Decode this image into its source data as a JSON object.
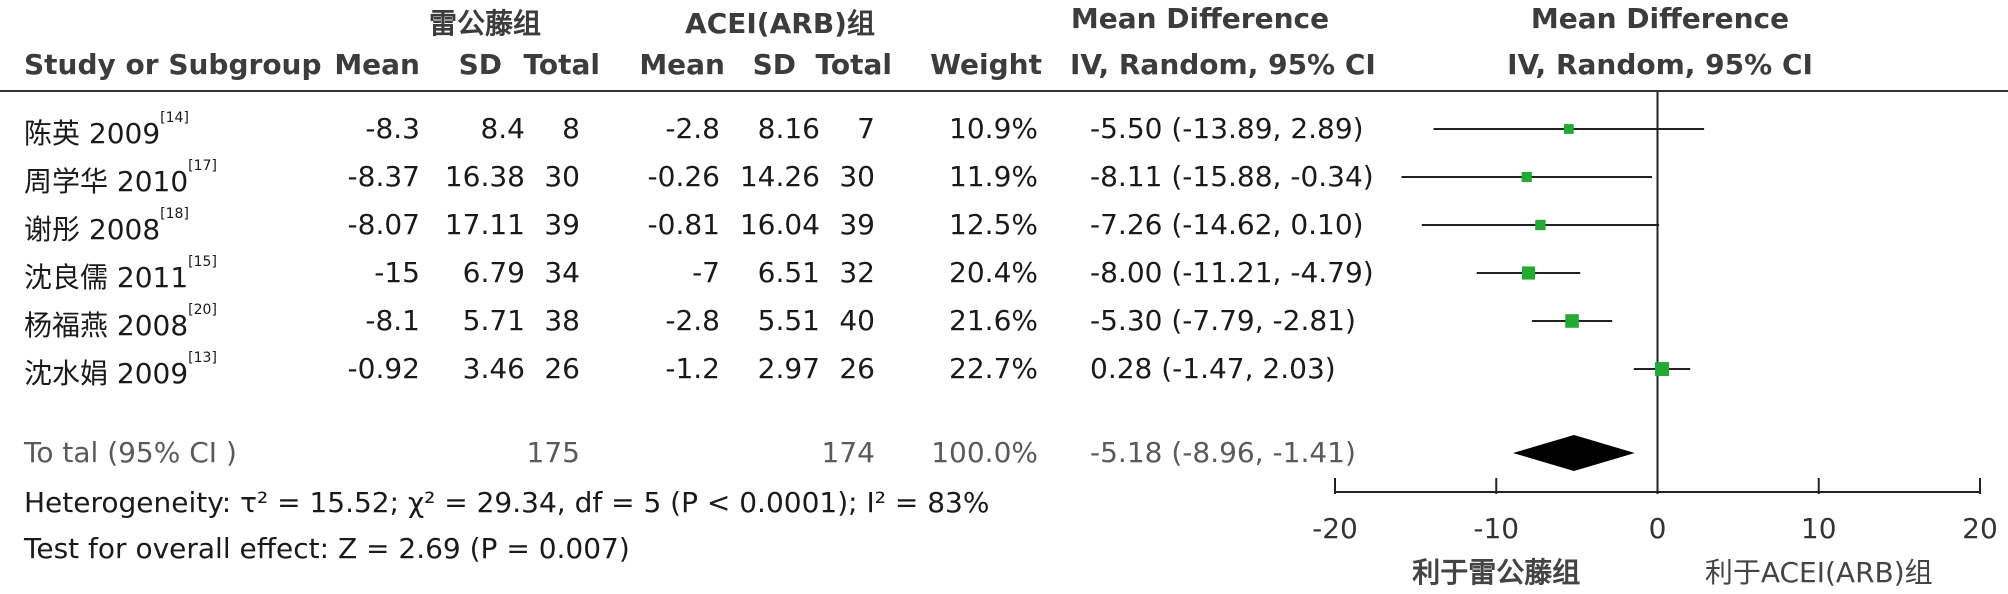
{
  "headers": {
    "group1": "雷公藤组",
    "group2": "ACEI(ARB)组",
    "md_title": "Mean Difference",
    "md_sub": "IV, Random, 95% CI",
    "plot_title": "Mean Difference",
    "plot_sub": "IV, Random, 95% CI",
    "study": "Study or Subgroup",
    "mean": "Mean",
    "sd": "SD",
    "total": "Total",
    "weight": "Weight"
  },
  "studies": [
    {
      "name": "陈英 2009",
      "ref": "[14]",
      "m1": "-8.3",
      "sd1": "8.4",
      "n1": "8",
      "m2": "-2.8",
      "sd2": "8.16",
      "n2": "7",
      "weight": "10.9%",
      "ci_text": "-5.50 (-13.89, 2.89)"
    },
    {
      "name": "周学华 2010",
      "ref": "[17]",
      "m1": "-8.37",
      "sd1": "16.38",
      "n1": "30",
      "m2": "-0.26",
      "sd2": "14.26",
      "n2": "30",
      "weight": "11.9%",
      "ci_text": "-8.11 (-15.88, -0.34)"
    },
    {
      "name": "谢彤 2008",
      "ref": "[18]",
      "m1": "-8.07",
      "sd1": "17.11",
      "n1": "39",
      "m2": "-0.81",
      "sd2": "16.04",
      "n2": "39",
      "weight": "12.5%",
      "ci_text": "-7.26 (-14.62, 0.10)"
    },
    {
      "name": "沈良儒 2011",
      "ref": "[15]",
      "m1": "-15",
      "sd1": "6.79",
      "n1": "34",
      "m2": "-7",
      "sd2": "6.51",
      "n2": "32",
      "weight": "20.4%",
      "ci_text": "-8.00 (-11.21, -4.79)"
    },
    {
      "name": "杨福燕 2008",
      "ref": "[20]",
      "m1": "-8.1",
      "sd1": "5.71",
      "n1": "38",
      "m2": "-2.8",
      "sd2": "5.51",
      "n2": "40",
      "weight": "21.6%",
      "ci_text": "-5.30 (-7.79, -2.81)"
    },
    {
      "name": "沈水娟 2009",
      "ref": "[13]",
      "m1": "-0.92",
      "sd1": "3.46",
      "n1": "26",
      "m2": "-1.2",
      "sd2": "2.97",
      "n2": "26",
      "weight": "22.7%",
      "ci_text": "0.28 (-1.47, 2.03)"
    }
  ],
  "total": {
    "label": "To tal (95% CI )",
    "n1": "175",
    "n2": "174",
    "weight": "100.0%",
    "ci_text": "-5.18 (-8.96, -1.41)"
  },
  "heterogeneity": "Heterogeneity: τ² = 15.52; χ² = 29.34, df = 5 (P < 0.0001); I² = 83%",
  "overall_effect": "Test for overall effect: Z = 2.69 (P = 0.007)",
  "axis": {
    "ticks": [
      "-20",
      "-10",
      "0",
      "10",
      "20"
    ],
    "left_label": "利于雷公藤组",
    "right_label": "利于ACEI(ARB)组"
  },
  "colors": {
    "marker": "#22aa33",
    "diamond": "#000000",
    "line": "#222222"
  },
  "chart_data": {
    "type": "forest",
    "xlim": [
      -20,
      20
    ],
    "xticks": [
      -20,
      -10,
      0,
      10,
      20
    ],
    "studies": [
      {
        "label": "陈英 2009",
        "md": -5.5,
        "lo": -13.89,
        "hi": 2.89,
        "weight": 10.9
      },
      {
        "label": "周学华 2010",
        "md": -8.11,
        "lo": -15.88,
        "hi": -0.34,
        "weight": 11.9
      },
      {
        "label": "谢彤 2008",
        "md": -7.26,
        "lo": -14.62,
        "hi": 0.1,
        "weight": 12.5
      },
      {
        "label": "沈良儒 2011",
        "md": -8.0,
        "lo": -11.21,
        "hi": -4.79,
        "weight": 20.4
      },
      {
        "label": "杨福燕 2008",
        "md": -5.3,
        "lo": -7.79,
        "hi": -2.81,
        "weight": 21.6
      },
      {
        "label": "沈水娟 2009",
        "md": 0.28,
        "lo": -1.47,
        "hi": 2.03,
        "weight": 22.7
      }
    ],
    "pooled": {
      "md": -5.18,
      "lo": -8.96,
      "hi": -1.41
    }
  }
}
